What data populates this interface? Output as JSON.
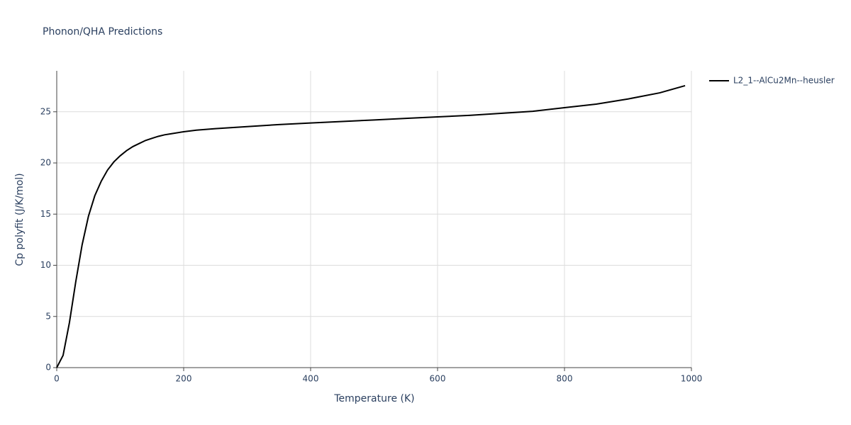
{
  "chart_data": {
    "type": "line",
    "title": "Phonon/QHA Predictions",
    "x_label": "Temperature (K)",
    "y_label": "Cp polyfit (J/K/mol)",
    "x": [
      0,
      10,
      20,
      30,
      40,
      50,
      60,
      70,
      80,
      90,
      100,
      110,
      120,
      130,
      140,
      150,
      160,
      170,
      180,
      200,
      220,
      250,
      300,
      350,
      400,
      450,
      500,
      550,
      600,
      650,
      700,
      750,
      800,
      850,
      900,
      950,
      990
    ],
    "series": [
      {
        "name": "L2_1--AlCu2Mn--heusler",
        "color": "#000000",
        "values": [
          0,
          1.2,
          4.4,
          8.4,
          12.0,
          14.8,
          16.8,
          18.2,
          19.3,
          20.1,
          20.7,
          21.2,
          21.6,
          21.9,
          22.2,
          22.4,
          22.6,
          22.75,
          22.85,
          23.05,
          23.2,
          23.35,
          23.55,
          23.75,
          23.9,
          24.05,
          24.2,
          24.35,
          24.5,
          24.65,
          24.85,
          25.05,
          25.4,
          25.75,
          26.25,
          26.85,
          27.55
        ]
      }
    ],
    "xlim": [
      0,
      1000
    ],
    "xticks": [
      0,
      200,
      400,
      600,
      800,
      1000
    ],
    "ylim": [
      0,
      29
    ],
    "yticks": [
      0,
      5,
      10,
      15,
      20,
      25
    ],
    "grid": true,
    "legend": "right"
  }
}
